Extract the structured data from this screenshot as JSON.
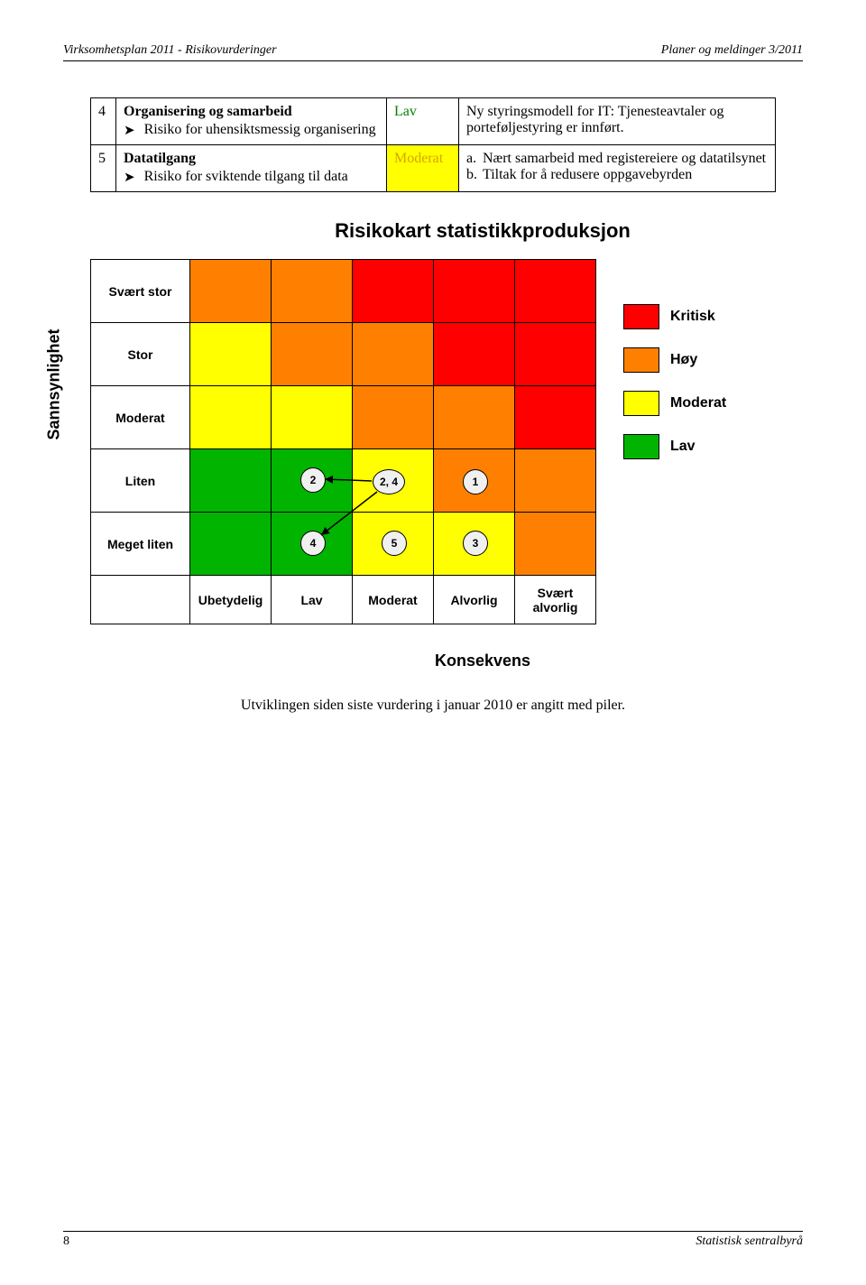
{
  "header": {
    "left": "Virksomhetsplan 2011 - Risikovurderinger",
    "right": "Planer og meldinger 3/2011"
  },
  "footer": {
    "page": "8",
    "source": "Statistisk sentralbyrå"
  },
  "table": {
    "rows": [
      {
        "num": "4",
        "title": "Organisering og samarbeid",
        "sub": "Risiko for uhensiktsmessig organisering",
        "level": "Lav",
        "level_color": "#008000",
        "level_bg": "#ffffff",
        "action": "Ny styringsmodell for IT: Tjenesteavtaler og porteføljestyring er innført."
      },
      {
        "num": "5",
        "title": "Datatilgang",
        "sub": "Risiko for sviktende tilgang til data",
        "level": "Moderat",
        "level_color": "#d8a400",
        "level_bg": "#ffff00",
        "action_a": "Nært samarbeid med registereiere og datatilsynet",
        "action_b": "Tiltak for å redusere oppgavebyrden"
      }
    ]
  },
  "chart": {
    "title": "Risikokart statistikkproduksjon",
    "y_axis": "Sannsynlighet",
    "x_axis": "Konsekvens",
    "row_labels": [
      "Svært stor",
      "Stor",
      "Moderat",
      "Liten",
      "Meget liten"
    ],
    "col_labels": [
      "Ubetydelig",
      "Lav",
      "Moderat",
      "Alvorlig",
      "Svært alvorlig"
    ],
    "colors": {
      "kritisk": "#ff0000",
      "hoy": "#ff8000",
      "moderat": "#ffff00",
      "lav": "#00b400"
    },
    "grid_colors": [
      [
        "#ff8000",
        "#ff8000",
        "#ff0000",
        "#ff0000",
        "#ff0000"
      ],
      [
        "#ffff00",
        "#ff8000",
        "#ff8000",
        "#ff0000",
        "#ff0000"
      ],
      [
        "#ffff00",
        "#ffff00",
        "#ff8000",
        "#ff8000",
        "#ff0000"
      ],
      [
        "#00b400",
        "#00b400",
        "#ffff00",
        "#ff8000",
        "#ff8000"
      ],
      [
        "#00b400",
        "#00b400",
        "#ffff00",
        "#ffff00",
        "#ff8000"
      ]
    ],
    "markers": [
      {
        "label": "2",
        "row": 3,
        "col": 1,
        "x": 32,
        "y": 20
      },
      {
        "label": "2, 4",
        "row": 3,
        "col": 2,
        "x": 22,
        "y": 22,
        "wide": true
      },
      {
        "label": "1",
        "row": 3,
        "col": 3,
        "x": 32,
        "y": 22
      },
      {
        "label": "4",
        "row": 4,
        "col": 1,
        "x": 32,
        "y": 20
      },
      {
        "label": "5",
        "row": 4,
        "col": 2,
        "x": 32,
        "y": 20
      },
      {
        "label": "3",
        "row": 4,
        "col": 3,
        "x": 32,
        "y": 20
      }
    ],
    "legend": [
      {
        "label": "Kritisk",
        "color": "#ff0000"
      },
      {
        "label": "Høy",
        "color": "#ff8000"
      },
      {
        "label": "Moderat",
        "color": "#ffff00"
      },
      {
        "label": "Lav",
        "color": "#00b400"
      }
    ]
  },
  "caption": "Utviklingen siden siste vurdering i januar 2010 er angitt med piler."
}
